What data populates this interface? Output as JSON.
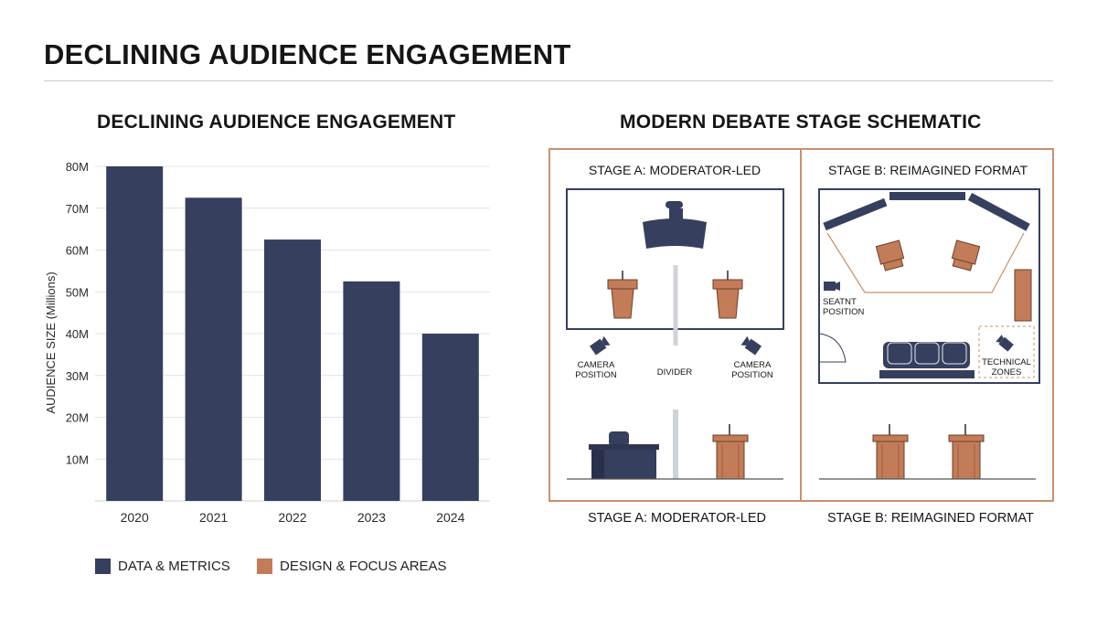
{
  "page": {
    "title": "DECLINING AUDIENCE ENGAGEMENT"
  },
  "colors": {
    "navy": "#373f5e",
    "copper": "#c27c5a",
    "frame": "#c9906d"
  },
  "chart_data": {
    "type": "bar",
    "title": "DECLINING AUDIENCE ENGAGEMENT",
    "categories": [
      "2020",
      "2021",
      "2022",
      "2023",
      "2024"
    ],
    "values": [
      80,
      72.5,
      62.5,
      52.5,
      40
    ],
    "ylabel": "AUDIENCE SIZE (Millions)",
    "xlabel": "",
    "ylim": [
      0,
      80
    ],
    "yticks": [
      10,
      20,
      30,
      40,
      50,
      60,
      70,
      80
    ],
    "ytick_labels": [
      "10M",
      "20M",
      "30M",
      "40M",
      "50M",
      "60M",
      "70M",
      "80M"
    ],
    "grid": true,
    "bar_color": "#373f5e"
  },
  "legend": {
    "items": [
      {
        "label": "DATA & METRICS",
        "color": "#373f5e"
      },
      {
        "label": "DESIGN & FOCUS AREAS",
        "color": "#c27c5a"
      }
    ]
  },
  "schematic": {
    "title": "MODERN DEBATE STAGE SCHEMATIC",
    "stage_a": {
      "heading": "STAGE A: MODERATOR-LED",
      "camera_left": [
        "CAMERA",
        "POSITION"
      ],
      "divider": "DIVIDER",
      "camera_right": [
        "CAMERA",
        "POSITION"
      ],
      "caption": "STAGE A: MODERATOR-LED"
    },
    "stage_b": {
      "heading": "STAGE B: REIMAGINED FORMAT",
      "seat": [
        "SEATNT",
        "POSITION"
      ],
      "technical": [
        "TECHNICAL",
        "ZONES"
      ],
      "caption": "STAGE B: REIMAGINED FORMAT"
    }
  }
}
